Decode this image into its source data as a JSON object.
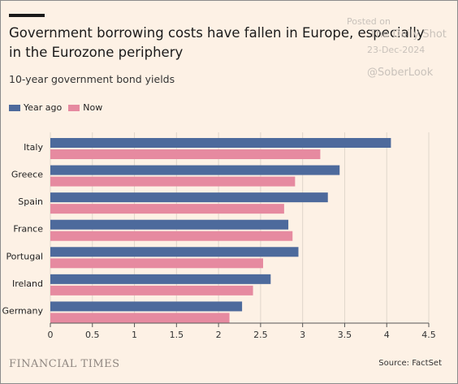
{
  "header": {
    "title": "Government borrowing costs have fallen in Europe, especially in the Eurozone periphery",
    "subtitle": "10-year government bond yields"
  },
  "watermark": {
    "posted": "Posted on",
    "brand": "The Daily Shot",
    "date": "23-Dec-2024",
    "handle": "@SoberLook"
  },
  "footer": {
    "publisher": "FINANCIAL TIMES",
    "source": "Source: FactSet"
  },
  "colors": {
    "year_ago": "#4d6a9c",
    "now": "#e68aa0",
    "grid": "#e0d6cb",
    "background": "#fdf1e5"
  },
  "chart_data": {
    "type": "bar",
    "orientation": "horizontal",
    "title": "Government borrowing costs have fallen in Europe, especially in the Eurozone periphery",
    "subtitle": "10-year government bond yields",
    "categories": [
      "Italy",
      "Greece",
      "Spain",
      "France",
      "Portugal",
      "Ireland",
      "Germany"
    ],
    "series": [
      {
        "name": "Year ago",
        "values": [
          4.05,
          3.44,
          3.3,
          2.83,
          2.95,
          2.62,
          2.28
        ]
      },
      {
        "name": "Now",
        "values": [
          3.21,
          2.91,
          2.78,
          2.88,
          2.53,
          2.41,
          2.13
        ]
      }
    ],
    "xlim": [
      0,
      4.5
    ],
    "xticks": [
      "0",
      "0.5",
      "1",
      "1.5",
      "2",
      "2.5",
      "3",
      "3.5",
      "4",
      "4.5"
    ],
    "grid": true,
    "legend_position": "top-left"
  }
}
